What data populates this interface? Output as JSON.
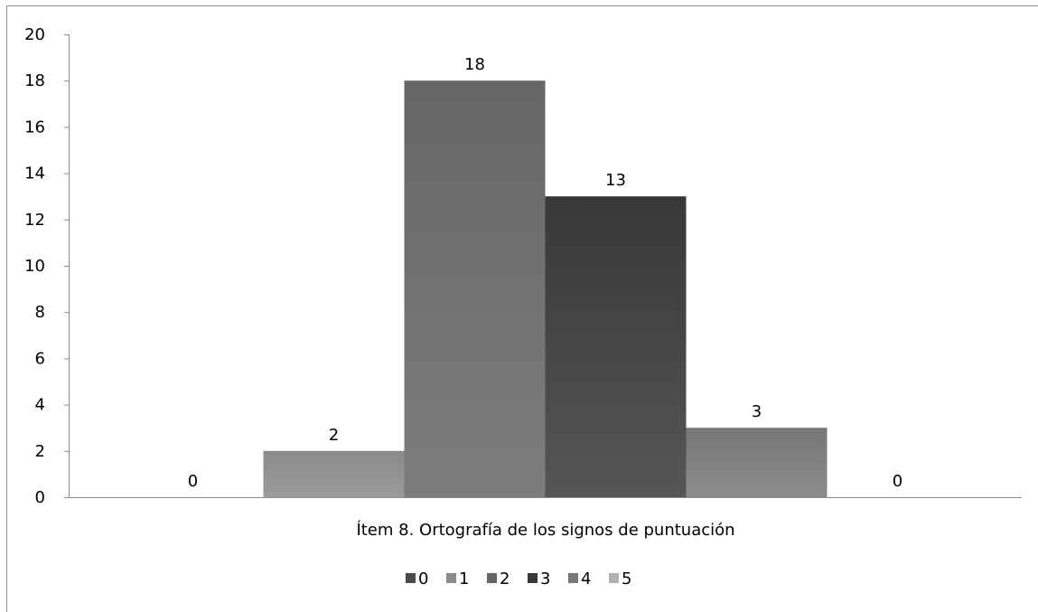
{
  "chart_data": {
    "type": "bar",
    "categories": [
      "Ítem 8. Ortografía de los signos de puntuación"
    ],
    "series": [
      {
        "name": "0",
        "values": [
          0
        ],
        "color": "#4a4a4a"
      },
      {
        "name": "1",
        "values": [
          2
        ],
        "color": "#8a8a8a"
      },
      {
        "name": "2",
        "values": [
          18
        ],
        "color": "#666666"
      },
      {
        "name": "3",
        "values": [
          13
        ],
        "color": "#383838"
      },
      {
        "name": "4",
        "values": [
          3
        ],
        "color": "#777777"
      },
      {
        "name": "5",
        "values": [
          0
        ],
        "color": "#b0b0b0"
      }
    ],
    "data_labels": [
      "0",
      "2",
      "18",
      "13",
      "3",
      "0"
    ],
    "ylim": [
      0,
      20
    ],
    "yticks": [
      "0",
      "2",
      "4",
      "6",
      "8",
      "10",
      "12",
      "14",
      "16",
      "18",
      "20"
    ],
    "grid": false,
    "legend": "bottom"
  }
}
